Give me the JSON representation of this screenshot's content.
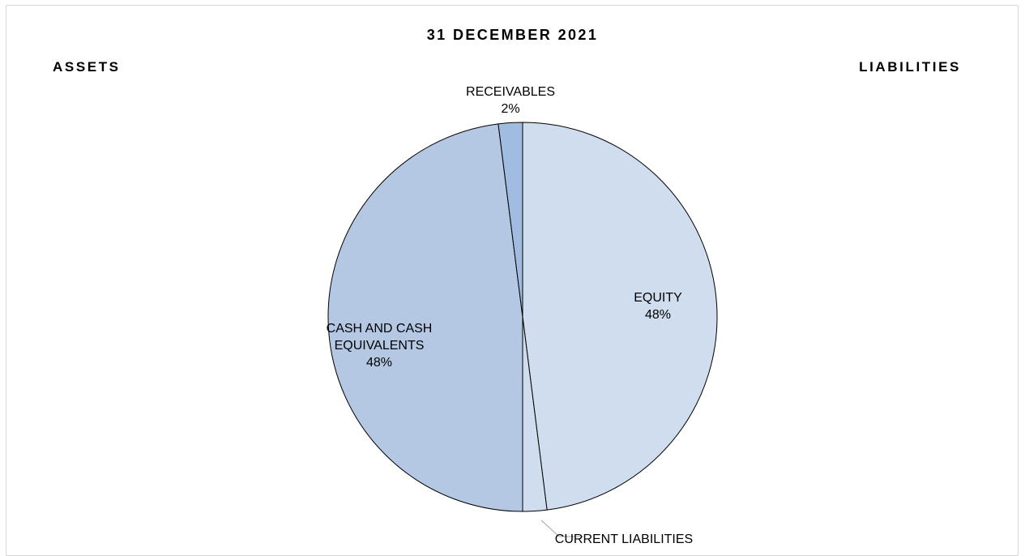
{
  "chart_data": {
    "type": "pie",
    "title": "31 DECEMBER 2021",
    "left_header": "ASSETS",
    "right_header": "LIABILITIES",
    "slices": [
      {
        "label": [
          "EQUITY"
        ],
        "value": 48,
        "percent_label": "48%",
        "color": "#cfddee"
      },
      {
        "label": [
          "CURRENT LIABILITIES"
        ],
        "value": 2,
        "percent_label": "2%",
        "color": "#cfddee"
      },
      {
        "label": [
          "CASH AND CASH",
          "EQUIVALENTS"
        ],
        "value": 48,
        "percent_label": "48%",
        "color": "#b4c8e4"
      },
      {
        "label": [
          "RECEIVABLES"
        ],
        "value": 2,
        "percent_label": "2%",
        "color": "#a0bde1"
      }
    ],
    "legend": "none",
    "stroke_color": "#000000"
  }
}
